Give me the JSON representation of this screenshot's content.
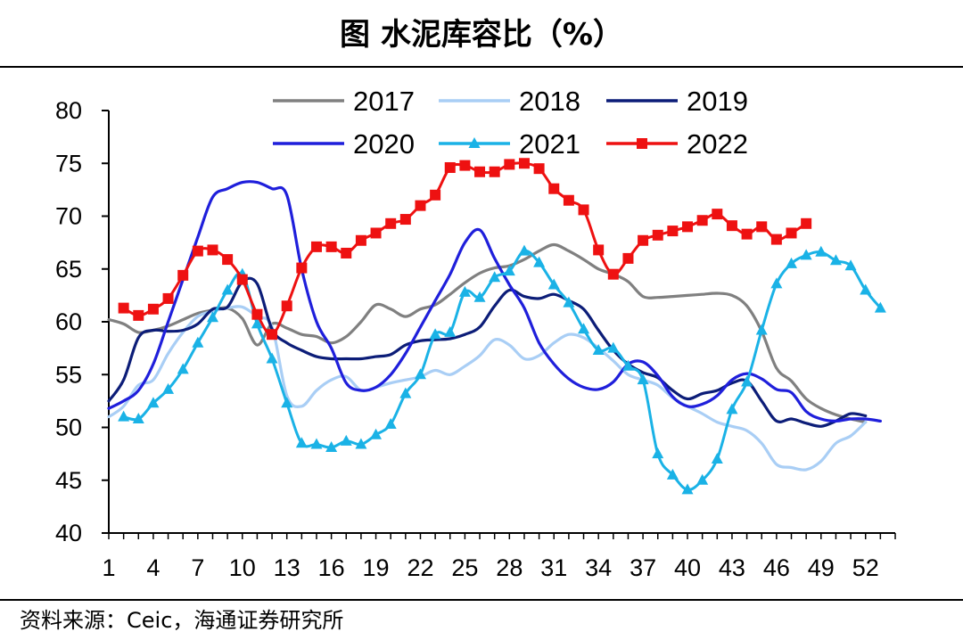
{
  "header": {
    "title": "图 水泥库容比（%）"
  },
  "footer": {
    "source": "资料来源：Ceic，海通证券研究所"
  },
  "chart_data": {
    "type": "line",
    "title": "图 水泥库容比（%）",
    "xlabel": "",
    "ylabel": "%",
    "xlim": [
      1,
      54
    ],
    "ylim": [
      40,
      80
    ],
    "yticks": [
      40,
      45,
      50,
      55,
      60,
      65,
      70,
      75,
      80
    ],
    "yticklabels": [
      "40",
      "45",
      "50",
      "55",
      "60",
      "65",
      "70",
      "75",
      "80"
    ],
    "xticks": [
      1,
      4,
      7,
      10,
      13,
      16,
      19,
      22,
      25,
      28,
      31,
      34,
      37,
      40,
      43,
      46,
      49,
      52
    ],
    "xticklabels": [
      "1",
      "4",
      "7",
      "10",
      "13",
      "16",
      "19",
      "22",
      "25",
      "28",
      "31",
      "34",
      "37",
      "40",
      "43",
      "46",
      "49",
      "52"
    ],
    "grid": false,
    "legend_position": "top",
    "series": [
      {
        "name": "2017",
        "color": "#808080",
        "marker": "none",
        "x": [
          1,
          2,
          3,
          4,
          5,
          6,
          7,
          8,
          9,
          10,
          11,
          12,
          13,
          14,
          15,
          16,
          17,
          18,
          19,
          20,
          21,
          22,
          23,
          24,
          25,
          26,
          27,
          28,
          29,
          30,
          31,
          32,
          33,
          34,
          35,
          36,
          37,
          38,
          39,
          40,
          41,
          42,
          43,
          44,
          45,
          46,
          47,
          48,
          49,
          50,
          51,
          52
        ],
        "values": [
          60.2,
          59.8,
          59.0,
          59.2,
          59.6,
          60.2,
          60.8,
          61.1,
          61.3,
          60.3,
          57.8,
          59.8,
          59.4,
          58.8,
          58.6,
          58.0,
          58.6,
          60.0,
          61.6,
          61.2,
          60.5,
          61.2,
          61.6,
          62.6,
          63.7,
          64.6,
          65.1,
          65.3,
          65.9,
          66.7,
          67.3,
          66.7,
          65.9,
          65.0,
          64.5,
          63.8,
          62.4,
          62.3,
          62.4,
          62.5,
          62.6,
          62.7,
          62.5,
          61.5,
          59.1,
          55.6,
          54.4,
          52.7,
          51.8,
          51.2,
          50.8,
          50.5
        ]
      },
      {
        "name": "2018",
        "color": "#a9cef5",
        "marker": "none",
        "x": [
          1,
          2,
          3,
          4,
          5,
          6,
          7,
          8,
          9,
          10,
          11,
          12,
          13,
          14,
          15,
          16,
          17,
          18,
          19,
          20,
          21,
          22,
          23,
          24,
          25,
          26,
          27,
          28,
          29,
          30,
          31,
          32,
          33,
          34,
          35,
          36,
          37,
          38,
          39,
          40,
          41,
          42,
          43,
          44,
          45,
          46,
          47,
          48,
          49,
          50,
          51,
          52
        ],
        "values": [
          51.0,
          52.0,
          54.0,
          54.5,
          57.0,
          59.0,
          60.5,
          61.0,
          61.3,
          61.4,
          60.5,
          59.5,
          53.0,
          52.0,
          53.5,
          54.5,
          54.8,
          53.5,
          53.8,
          54.2,
          54.5,
          54.8,
          55.4,
          55.0,
          55.8,
          56.8,
          58.3,
          57.8,
          56.5,
          56.8,
          58.0,
          58.8,
          58.5,
          57.5,
          56.3,
          55.0,
          54.5,
          54.0,
          52.8,
          52.0,
          51.3,
          50.5,
          50.1,
          49.7,
          48.5,
          46.5,
          46.2,
          46.0,
          46.8,
          48.5,
          49.2,
          50.5
        ]
      },
      {
        "name": "2019",
        "color": "#0c1d78",
        "marker": "none",
        "x": [
          1,
          2,
          3,
          4,
          5,
          6,
          7,
          8,
          9,
          10,
          11,
          12,
          13,
          14,
          15,
          16,
          17,
          18,
          19,
          20,
          21,
          22,
          23,
          24,
          25,
          26,
          27,
          28,
          29,
          30,
          31,
          32,
          33,
          34,
          35,
          36,
          37,
          38,
          39,
          40,
          41,
          42,
          43,
          44,
          45,
          46,
          47,
          48,
          49,
          50,
          51,
          52
        ],
        "values": [
          52.5,
          54.5,
          58.5,
          59.2,
          59.1,
          59.2,
          59.8,
          61.2,
          61.4,
          63.8,
          63.6,
          59.3,
          58.0,
          57.3,
          56.7,
          56.5,
          56.5,
          56.5,
          56.7,
          56.9,
          57.8,
          58.2,
          58.3,
          58.4,
          58.8,
          59.5,
          61.5,
          63.0,
          62.4,
          62.2,
          62.6,
          62.0,
          61.2,
          59.2,
          57.3,
          56.0,
          55.2,
          54.7,
          53.5,
          52.7,
          53.2,
          53.5,
          54.2,
          54.4,
          52.5,
          50.6,
          50.8,
          50.4,
          50.1,
          50.6,
          51.3,
          51.1
        ]
      },
      {
        "name": "2020",
        "color": "#1f1fdb",
        "marker": "none",
        "x": [
          1,
          2,
          3,
          4,
          5,
          6,
          7,
          8,
          9,
          10,
          11,
          12,
          13,
          14,
          15,
          16,
          17,
          18,
          19,
          20,
          21,
          22,
          23,
          24,
          25,
          26,
          27,
          28,
          29,
          30,
          31,
          32,
          33,
          34,
          35,
          36,
          37,
          38,
          39,
          40,
          41,
          42,
          43,
          44,
          45,
          46,
          47,
          48,
          49,
          50,
          51,
          52,
          53
        ],
        "values": [
          51.8,
          52.5,
          53.5,
          56.0,
          60.0,
          64.0,
          68.0,
          71.8,
          72.6,
          73.2,
          73.2,
          72.6,
          72.0,
          65.0,
          60.0,
          57.5,
          54.2,
          53.5,
          53.8,
          55.0,
          57.0,
          59.5,
          62.0,
          64.5,
          67.5,
          68.7,
          66.0,
          63.5,
          61.3,
          58.0,
          56.0,
          54.6,
          53.8,
          53.6,
          54.3,
          56.0,
          56.2,
          54.9,
          52.9,
          52.0,
          52.2,
          53.0,
          54.5,
          55.1,
          54.6,
          53.6,
          53.3,
          51.5,
          50.8,
          50.6,
          50.8,
          50.8,
          50.6
        ]
      },
      {
        "name": "2021",
        "color": "#1ab2e6",
        "marker": "triangle",
        "x": [
          2,
          3,
          4,
          5,
          6,
          7,
          8,
          9,
          10,
          11,
          12,
          13,
          14,
          15,
          16,
          17,
          18,
          19,
          20,
          21,
          22,
          23,
          24,
          25,
          26,
          27,
          28,
          29,
          30,
          31,
          32,
          33,
          34,
          35,
          36,
          37,
          38,
          39,
          40,
          41,
          42,
          43,
          44,
          45,
          46,
          47,
          48,
          49,
          50,
          51,
          52,
          53
        ],
        "values": [
          51.0,
          50.8,
          52.3,
          53.6,
          55.5,
          58.0,
          60.4,
          63.0,
          64.5,
          59.8,
          56.5,
          52.3,
          48.5,
          48.4,
          48.1,
          48.7,
          48.4,
          49.3,
          50.3,
          53.2,
          55.0,
          58.8,
          59.0,
          62.8,
          62.3,
          64.2,
          64.8,
          66.7,
          65.6,
          63.5,
          61.8,
          59.3,
          57.3,
          57.5,
          55.8,
          54.5,
          47.5,
          45.5,
          44.1,
          45.0,
          47.0,
          51.7,
          54.3,
          59.2,
          63.6,
          65.5,
          66.3,
          66.6,
          65.8,
          65.3,
          63.0,
          61.3
        ]
      },
      {
        "name": "2022",
        "color": "#ee1111",
        "marker": "square",
        "x": [
          2,
          3,
          4,
          5,
          6,
          7,
          8,
          9,
          10,
          11,
          12,
          13,
          14,
          15,
          16,
          17,
          18,
          19,
          20,
          21,
          22,
          23,
          24,
          25,
          26,
          27,
          28,
          29,
          30,
          31,
          32,
          33,
          34,
          35,
          36,
          37,
          38,
          39,
          40,
          41,
          42,
          43,
          44,
          45,
          46,
          47,
          48
        ],
        "values": [
          61.3,
          60.6,
          61.2,
          62.2,
          64.4,
          66.7,
          66.8,
          65.9,
          64.0,
          60.7,
          58.8,
          61.5,
          65.1,
          67.1,
          67.1,
          66.5,
          67.7,
          68.4,
          69.3,
          69.7,
          71.0,
          72.0,
          74.6,
          74.8,
          74.2,
          74.2,
          74.9,
          75.0,
          74.5,
          72.6,
          71.5,
          70.6,
          66.8,
          64.5,
          66.0,
          67.7,
          68.2,
          68.6,
          69.0,
          69.6,
          70.2,
          69.1,
          68.3,
          69.0,
          67.8,
          68.4,
          69.3
        ]
      }
    ]
  }
}
